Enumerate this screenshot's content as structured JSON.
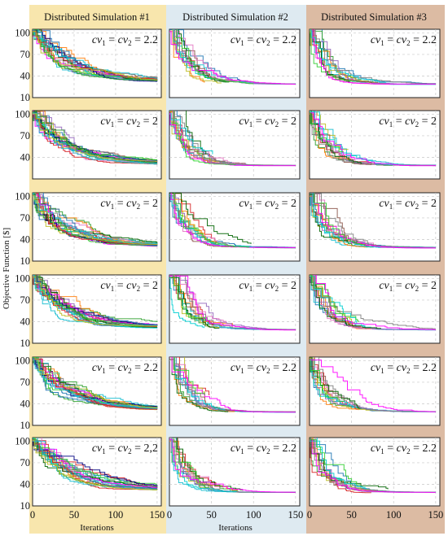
{
  "figure": {
    "ylabel": "Objective Function [$]",
    "xlabel": "Iterations",
    "columns": [
      {
        "title": "Distributed Simulation #1",
        "bg": "#f8e6ad"
      },
      {
        "title": "Distributed Simulation #2",
        "bg": "#deeaf1"
      },
      {
        "title": "Distributed Simulation #3",
        "bg": "#dcbba3"
      }
    ],
    "row_ticks": [
      [
        "100",
        "70",
        "40",
        "10"
      ],
      [
        "100",
        "70",
        "40"
      ],
      [
        "100",
        "70",
        "40",
        "10"
      ],
      [
        "100",
        "70",
        "40",
        "10"
      ],
      [
        "100",
        "70",
        "40",
        "10"
      ],
      [
        "100",
        "70",
        "40",
        "10"
      ]
    ],
    "x_ticks": [
      "0",
      "50",
      "100",
      "150"
    ],
    "extra_label": "10"
  },
  "chart_data": {
    "type": "line",
    "description_units": "Objective function value [$] vs iteration; many runs per panel",
    "xlim": [
      0,
      155
    ],
    "ylim": [
      10,
      105
    ],
    "grid": true,
    "panels": [
      {
        "row": 1,
        "col": 1,
        "annotation": "cv1 = cv2 = 2.2",
        "final_value": 32,
        "start_value": 100
      },
      {
        "row": 1,
        "col": 2,
        "annotation": "cv1 = cv2 = 2.2",
        "final_value": 28,
        "start_value": 100
      },
      {
        "row": 1,
        "col": 3,
        "annotation": "cv1 = cv2 = 2.2",
        "final_value": 28,
        "start_value": 100
      },
      {
        "row": 2,
        "col": 1,
        "annotation": "cv1 = cv2 = 2",
        "final_value": 30,
        "start_value": 100
      },
      {
        "row": 2,
        "col": 2,
        "annotation": "cv1 = cv2 = 2",
        "final_value": 28,
        "start_value": 100
      },
      {
        "row": 2,
        "col": 3,
        "annotation": "cv1 = cv2 = 2",
        "final_value": 28,
        "start_value": 100
      },
      {
        "row": 3,
        "col": 1,
        "annotation": "cv1 = cv2 = 2",
        "final_value": 30,
        "start_value": 100
      },
      {
        "row": 3,
        "col": 2,
        "annotation": "cv1 = cv2 = 2",
        "final_value": 28,
        "start_value": 100
      },
      {
        "row": 3,
        "col": 3,
        "annotation": "cv1 = cv2 = 2",
        "final_value": 28,
        "start_value": 100
      },
      {
        "row": 4,
        "col": 1,
        "annotation": "cv1 = cv2 = 2",
        "final_value": 31,
        "start_value": 100
      },
      {
        "row": 4,
        "col": 2,
        "annotation": "cv1 = cv2 = 2",
        "final_value": 28,
        "start_value": 100
      },
      {
        "row": 4,
        "col": 3,
        "annotation": "cv1 = cv2 = 2",
        "final_value": 28,
        "start_value": 100
      },
      {
        "row": 5,
        "col": 1,
        "annotation": "cv1 = cv2 = 2.2",
        "final_value": 31,
        "start_value": 100
      },
      {
        "row": 5,
        "col": 2,
        "annotation": "cv1 = cv2 = 2.2",
        "final_value": 28,
        "start_value": 100
      },
      {
        "row": 5,
        "col": 3,
        "annotation": "cv1 = cv2 = 2.2",
        "final_value": 28,
        "start_value": 100
      },
      {
        "row": 6,
        "col": 1,
        "annotation": "cv1 = cv2 = 2,2",
        "final_value": 32,
        "start_value": 100
      },
      {
        "row": 6,
        "col": 2,
        "annotation": "cv1 = cv2 = 2.2",
        "final_value": 28,
        "start_value": 100
      },
      {
        "row": 6,
        "col": 3,
        "annotation": "cv1 = cv2 = 2.2",
        "final_value": 28,
        "start_value": 100
      }
    ],
    "series_colors": [
      "#1f77b4",
      "#2ca02c",
      "#d62728",
      "#17becf",
      "#bcbd22",
      "#ff7f0e",
      "#9467bd",
      "#8c564b",
      "#e377c2",
      "#7f7f7f",
      "#006400",
      "#00ced1",
      "#ff00ff",
      "#32cd32",
      "#000080"
    ]
  }
}
